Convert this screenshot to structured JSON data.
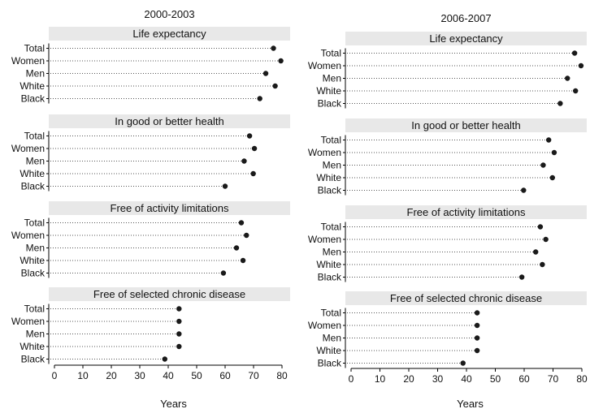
{
  "chart_data": [
    {
      "type": "dot",
      "title": "2000-2003",
      "xlabel": "Years",
      "xlim": [
        0,
        80
      ],
      "xticks": [
        0,
        10,
        20,
        30,
        40,
        50,
        60,
        70,
        80
      ],
      "categories": [
        "Total",
        "Women",
        "Men",
        "White",
        "Black"
      ],
      "panels": [
        {
          "name": "Life expectancy",
          "values": [
            77,
            79.6,
            74.3,
            77.6,
            72.2
          ]
        },
        {
          "name": "In good or better health",
          "values": [
            68.6,
            70.3,
            66.7,
            69.9,
            60
          ]
        },
        {
          "name": "Free of activity limitations",
          "values": [
            65.7,
            67.5,
            64,
            66.3,
            59.4
          ]
        },
        {
          "name": "Free of selected chronic disease",
          "values": [
            43.8,
            43.8,
            43.8,
            43.8,
            38.8
          ]
        }
      ]
    },
    {
      "type": "dot",
      "title": "2006-2007",
      "xlabel": "Years",
      "xlim": [
        0,
        80
      ],
      "xticks": [
        0,
        10,
        20,
        30,
        40,
        50,
        60,
        70,
        80
      ],
      "categories": [
        "Total",
        "Women",
        "Men",
        "White",
        "Black"
      ],
      "panels": [
        {
          "name": "Life expectancy",
          "values": [
            77.5,
            79.7,
            75,
            77.8,
            72.5
          ]
        },
        {
          "name": "In good or better health",
          "values": [
            68.5,
            70.4,
            66.6,
            69.8,
            59.8
          ]
        },
        {
          "name": "Free of activity limitations",
          "values": [
            65.6,
            67.5,
            64,
            66.3,
            59.2
          ]
        },
        {
          "name": "Free of selected chronic disease",
          "values": [
            43.7,
            43.7,
            43.7,
            43.7,
            38.8
          ]
        }
      ]
    }
  ],
  "style": {
    "strip_color": "#e8e8e8",
    "dot_color": "#1a1a1a",
    "leader_color": "#555555",
    "axis_color": "#000000"
  }
}
